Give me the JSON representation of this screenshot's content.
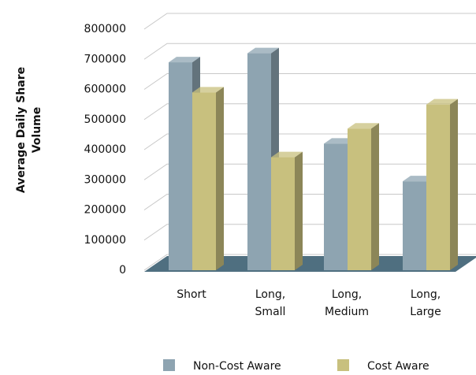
{
  "chart_data": {
    "type": "bar3d",
    "ylabel": [
      "Average Daily Share",
      "Volume"
    ],
    "categories": [
      [
        "Short"
      ],
      [
        "Long,",
        "Small"
      ],
      [
        "Long,",
        "Medium"
      ],
      [
        "Long,",
        "Large"
      ]
    ],
    "series": [
      {
        "name": "Non-Cost Aware",
        "color": "#8ea4b1",
        "values": [
          690000,
          720000,
          420000,
          295000
        ]
      },
      {
        "name": "Cost Aware",
        "color": "#c8c07e",
        "values": [
          590000,
          375000,
          470000,
          550000
        ]
      }
    ],
    "ylim": [
      0,
      800000
    ],
    "yticks": [
      0,
      100000,
      200000,
      300000,
      400000,
      500000,
      600000,
      700000,
      800000
    ],
    "grid": true,
    "floor_color": "#4f6f80",
    "legend": "bottom"
  }
}
